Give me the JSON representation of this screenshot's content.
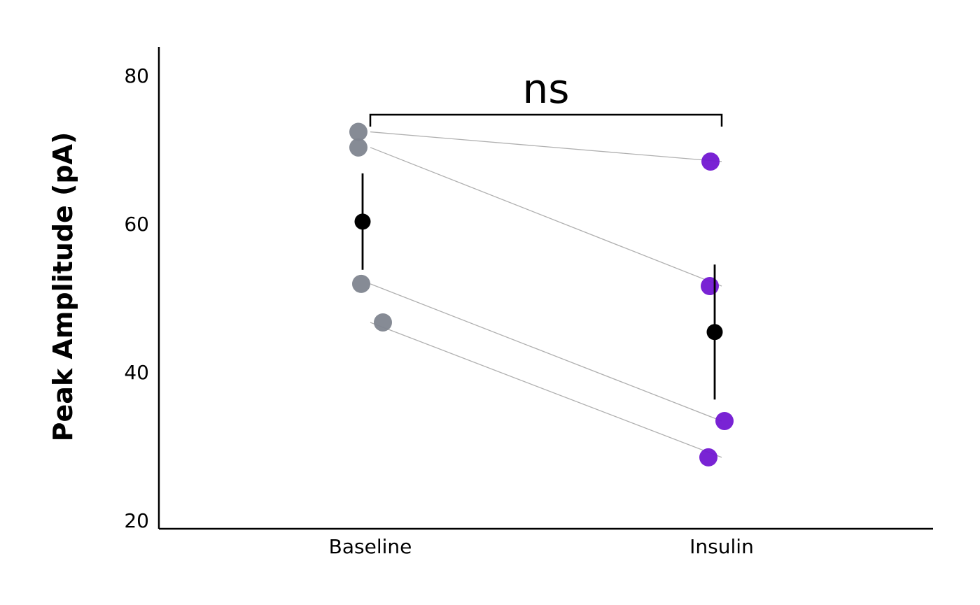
{
  "chart_data": {
    "type": "scatter",
    "title": "",
    "xlabel": "",
    "ylabel": "Peak Amplitude (pA)",
    "categories": [
      "Baseline",
      "Insulin"
    ],
    "yticks": [
      20,
      40,
      60,
      80
    ],
    "ylim": [
      20,
      84
    ],
    "grid": false,
    "legend": "none",
    "paired_points": [
      {
        "Baseline": 72.4,
        "Insulin": 68.4
      },
      {
        "Baseline": 70.3,
        "Insulin": 51.6
      },
      {
        "Baseline": 51.9,
        "Insulin": 33.4
      },
      {
        "Baseline": 46.7,
        "Insulin": 28.5
      }
    ],
    "summary": [
      {
        "category": "Baseline",
        "mean": 60.3,
        "lower": 53.8,
        "upper": 66.8
      },
      {
        "category": "Insulin",
        "mean": 45.4,
        "lower": 36.3,
        "upper": 54.5
      }
    ],
    "significance": {
      "from": "Baseline",
      "to": "Insulin",
      "label": "ns"
    },
    "colors": {
      "Baseline": "#7f858f",
      "Insulin": "#7217d2",
      "summary": "#000000",
      "connector": "#b0b0b0"
    }
  }
}
